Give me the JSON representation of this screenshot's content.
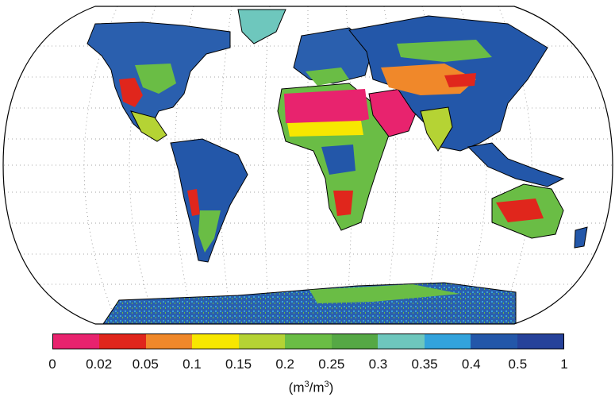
{
  "legend": {
    "ticks": [
      "0",
      "0.02",
      "0.05",
      "0.1",
      "0.15",
      "0.2",
      "0.25",
      "0.3",
      "0.35",
      "0.4",
      "0.5",
      "1"
    ],
    "colors": [
      "#e8236e",
      "#e0261c",
      "#f0882a",
      "#f7e700",
      "#b5d334",
      "#6abd45",
      "#55a845",
      "#6ec7bd",
      "#33a3dc",
      "#2357a9",
      "#26429a"
    ],
    "unit_prefix": "(m",
    "unit_exp1": "3",
    "unit_mid": "/m",
    "unit_exp2": "3",
    "unit_suffix": ")"
  },
  "map": {
    "projection": "robinson",
    "ocean_color": "#ffffff",
    "graticule": "dotted"
  }
}
